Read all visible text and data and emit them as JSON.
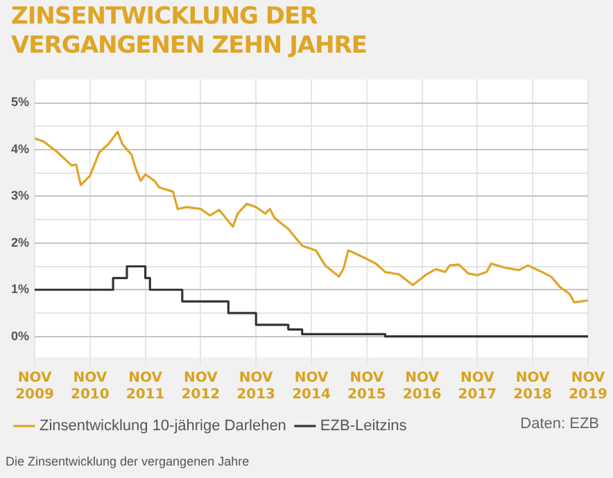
{
  "chart_data": {
    "type": "line",
    "title": "ZINSENTWICKLUNG DER VERGANGENEN ZEHN JAHRE",
    "xlim": [
      "2009-11",
      "2019-11"
    ],
    "xticks": [
      {
        "value": "2009-11",
        "label": "NOV 2009"
      },
      {
        "value": "2010-11",
        "label": "NOV 2010"
      },
      {
        "value": "2011-11",
        "label": "NOV 2011"
      },
      {
        "value": "2012-11",
        "label": "NOV 2012"
      },
      {
        "value": "2013-11",
        "label": "NOV 2013"
      },
      {
        "value": "2014-11",
        "label": "NOV 2014"
      },
      {
        "value": "2015-11",
        "label": "NOV 2015"
      },
      {
        "value": "2016-11",
        "label": "NOV 2016"
      },
      {
        "value": "2017-11",
        "label": "NOV 2017"
      },
      {
        "value": "2018-11",
        "label": "NOV 2018"
      },
      {
        "value": "2019-11",
        "label": "NOV 2019"
      }
    ],
    "ylim": [
      -0.45,
      5.5
    ],
    "yticks": [
      {
        "value": 0,
        "label": "0%"
      },
      {
        "value": 0.5,
        "label": null
      },
      {
        "value": 1,
        "label": "1%"
      },
      {
        "value": 1.5,
        "label": null
      },
      {
        "value": 2,
        "label": "2%"
      },
      {
        "value": 2.5,
        "label": null
      },
      {
        "value": 3,
        "label": "3%"
      },
      {
        "value": 3.5,
        "label": null
      },
      {
        "value": 4,
        "label": "4%"
      },
      {
        "value": 4.5,
        "label": null
      },
      {
        "value": 5,
        "label": "5%"
      }
    ],
    "grid": true,
    "legend": "bottom",
    "marker": "none",
    "line_style": "solid",
    "annotations": [
      "Daten: EZB",
      "Die Zinsentwicklung der vergangenen Jahre"
    ],
    "series": [
      {
        "name": "Zinsentwicklung 10-jährige Darlehen",
        "color": "#e0a526",
        "type": "line",
        "x": [
          "2009-11",
          "2010-01",
          "2010-04",
          "2010-07",
          "2010-08",
          "2010-09",
          "2010-11",
          "2011-01",
          "2011-03",
          "2011-05",
          "2011-06",
          "2011-08",
          "2011-09",
          "2011-10",
          "2011-11",
          "2012-01",
          "2012-02",
          "2012-05",
          "2012-06",
          "2012-08",
          "2012-11",
          "2013-01",
          "2013-03",
          "2013-06",
          "2013-07",
          "2013-09",
          "2013-11",
          "2014-01",
          "2014-02",
          "2014-03",
          "2014-06",
          "2014-09",
          "2014-12",
          "2015-02",
          "2015-05",
          "2015-06",
          "2015-07",
          "2015-08",
          "2015-11",
          "2016-01",
          "2016-03",
          "2016-06",
          "2016-09",
          "2016-12",
          "2017-02",
          "2017-04",
          "2017-05",
          "2017-07",
          "2017-09",
          "2017-11",
          "2018-01",
          "2018-02",
          "2018-05",
          "2018-08",
          "2018-10",
          "2019-01",
          "2019-03",
          "2019-05",
          "2019-07",
          "2019-08",
          "2019-11"
        ],
        "values": [
          4.24,
          4.17,
          3.94,
          3.66,
          3.68,
          3.24,
          3.44,
          3.94,
          4.12,
          4.38,
          4.12,
          3.89,
          3.57,
          3.33,
          3.47,
          3.33,
          3.19,
          3.1,
          2.73,
          2.77,
          2.73,
          2.59,
          2.71,
          2.35,
          2.63,
          2.84,
          2.77,
          2.63,
          2.73,
          2.54,
          2.3,
          1.94,
          1.84,
          1.52,
          1.28,
          1.46,
          1.84,
          1.8,
          1.66,
          1.56,
          1.38,
          1.33,
          1.1,
          1.33,
          1.44,
          1.38,
          1.52,
          1.54,
          1.35,
          1.31,
          1.38,
          1.56,
          1.47,
          1.42,
          1.52,
          1.38,
          1.28,
          1.05,
          0.91,
          0.73,
          0.77
        ]
      },
      {
        "name": "EZB-Leitzins",
        "color": "#333333",
        "type": "step",
        "x": [
          "2009-11",
          "2011-04",
          "2011-07",
          "2011-11",
          "2011-12",
          "2012-07",
          "2013-05",
          "2013-11",
          "2014-06",
          "2014-09",
          "2016-03",
          "2019-11"
        ],
        "values": [
          1,
          1.25,
          1.5,
          1.25,
          1,
          0.75,
          0.5,
          0.25,
          0.15,
          0.05,
          0,
          0
        ]
      }
    ]
  }
}
